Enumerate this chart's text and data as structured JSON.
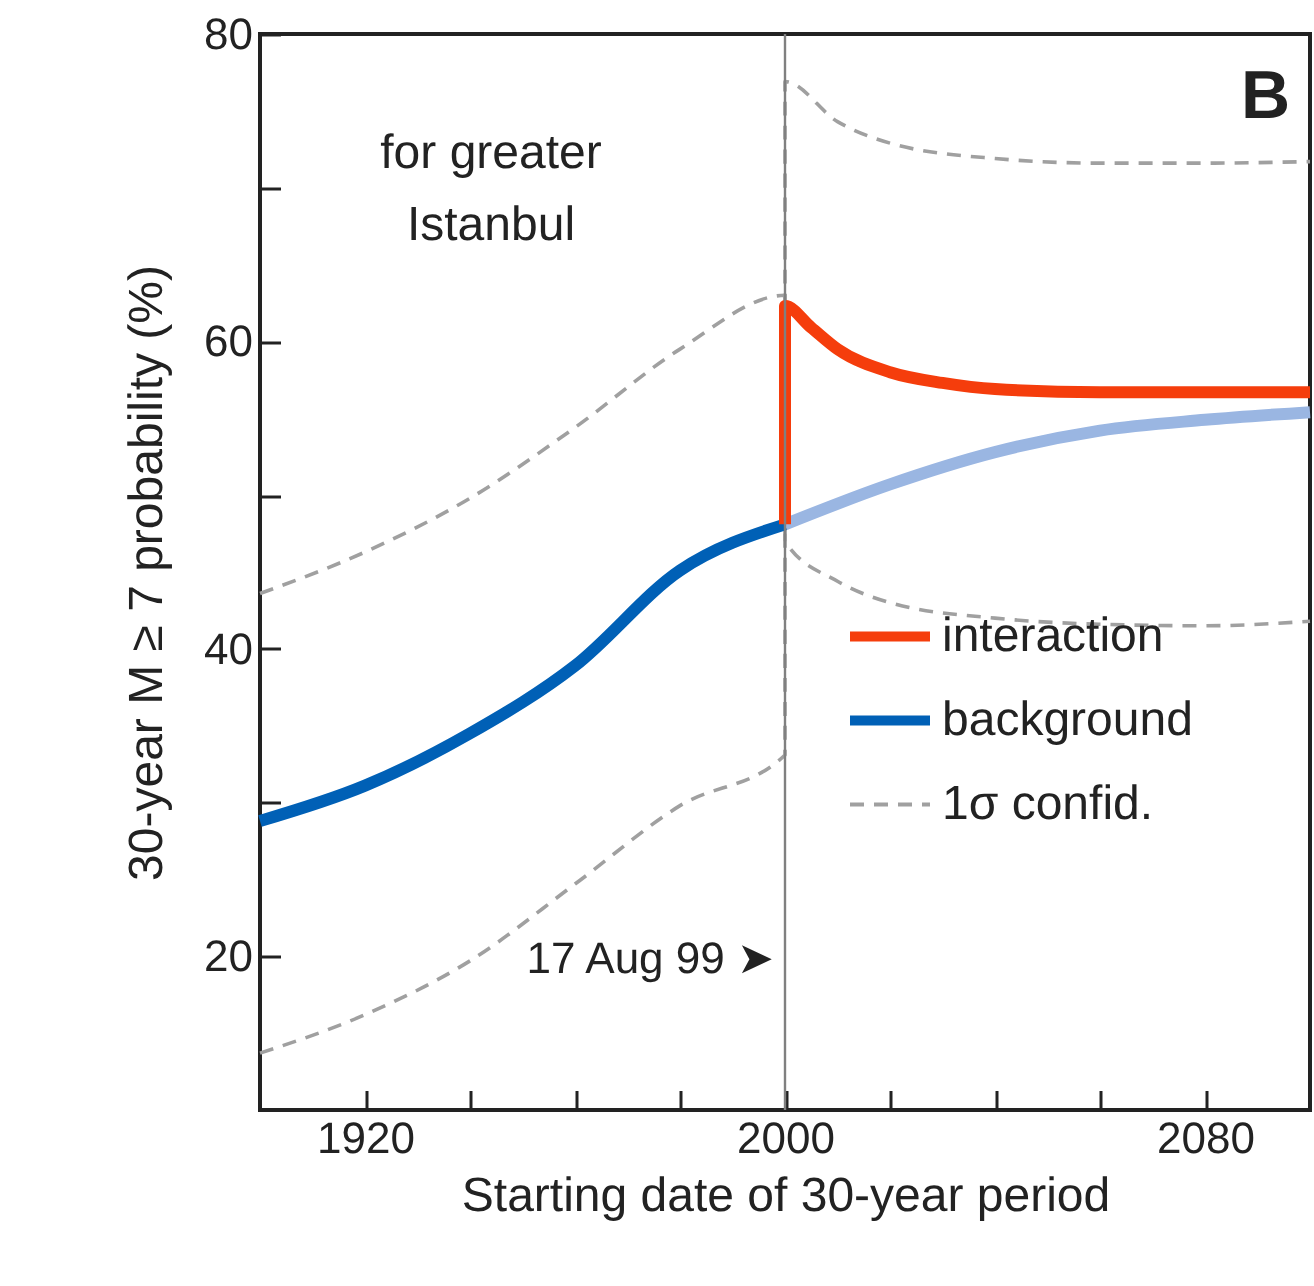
{
  "chart_data": {
    "type": "line",
    "xlabel": "Starting date of 30-year period",
    "ylabel": "30-year M ≥ 7 probability (%)",
    "annotations": [
      "B",
      "for greater\nIstanbul"
    ],
    "xlim": [
      1900,
      2100
    ],
    "ylim": [
      10,
      80
    ],
    "xticks": [
      1920,
      {
        "value": 1940,
        "label": null
      },
      {
        "value": 1960,
        "label": null
      },
      {
        "value": 1980,
        "label": null
      },
      2000,
      {
        "value": 2020,
        "label": null
      },
      {
        "value": 2040,
        "label": null
      },
      {
        "value": 2060,
        "label": null
      },
      2080
    ],
    "yticks": [
      20,
      {
        "value": 30,
        "label": null
      },
      40,
      {
        "value": 50,
        "label": null
      },
      60,
      {
        "value": 70,
        "label": null
      },
      80
    ],
    "grid": false,
    "legend": "bottom right",
    "marker": "none",
    "ref_lines": [
      {
        "axis": "x",
        "value": 2000,
        "label": "17 Aug 99 ➤",
        "color": "#808080"
      }
    ],
    "series": [
      {
        "name": "1σ confid.",
        "color": "#a0a0a0",
        "line_style": "dashed",
        "x": [
          1900,
          1920,
          1940,
          1960,
          1980,
          2000,
          2000,
          2010,
          2020,
          2040,
          2060,
          2080,
          2100
        ],
        "values": [
          13.7,
          16.2,
          19.7,
          24.7,
          29.8,
          33.1,
          76.9,
          74.3,
          72.9,
          71.9,
          71.6,
          71.6,
          71.7
        ]
      },
      {
        "color": "#a0a0a0",
        "line_style": "dashed",
        "x": [
          1900,
          1920,
          1940,
          1960,
          1980,
          2000,
          2000,
          2010,
          2020,
          2040,
          2060,
          2080,
          2100
        ],
        "values": [
          43.6,
          46.3,
          49.8,
          54.4,
          59.5,
          63.0,
          47.0,
          44.4,
          43.0,
          42.0,
          41.6,
          41.5,
          41.8
        ]
      },
      {
        "color": "#9ab6e2",
        "line_style": "solid",
        "x": [
          2000,
          2020,
          2040,
          2060,
          2080,
          2100
        ],
        "values": [
          48.1,
          50.7,
          52.8,
          54.2,
          54.9,
          55.4
        ]
      },
      {
        "name": "background",
        "color": "#0060b6",
        "line_style": "solid",
        "x": [
          1900,
          1920,
          1940,
          1960,
          1980,
          2000
        ],
        "values": [
          28.8,
          31.1,
          34.5,
          38.9,
          45.1,
          48.1
        ]
      },
      {
        "name": "interaction",
        "color": "#f53d0c",
        "line_style": "solid",
        "x": [
          2000,
          2000,
          2005,
          2010,
          2020,
          2030,
          2040,
          2060,
          2080,
          2100
        ],
        "values": [
          48.1,
          62.3,
          60.9,
          59.5,
          58.0,
          57.3,
          56.9,
          56.7,
          56.7,
          56.7
        ]
      }
    ]
  }
}
